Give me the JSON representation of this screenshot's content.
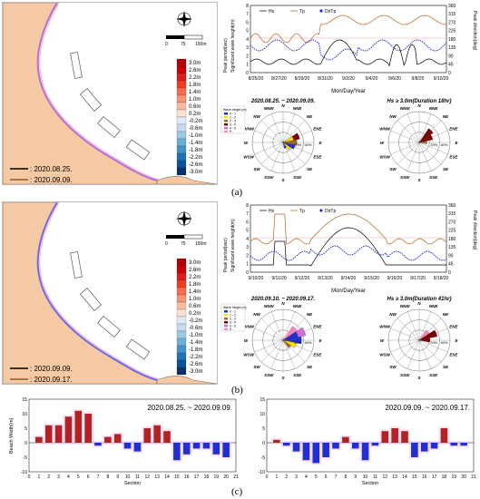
{
  "figure": {
    "panel_labels": [
      "(a)",
      "(b)",
      "(c)"
    ]
  },
  "panel_a": {
    "map": {
      "legend_lines": [
        ": 2020.08.25.",
        ": 2020.09.09."
      ],
      "scale_labels": [
        "0",
        "75",
        "150m"
      ],
      "colorbar_labels": [
        "3.0m",
        "2.6m",
        "2.2m",
        "1.8m",
        "1.4m",
        "1.0m",
        "0.6m",
        "0.2m",
        "-0.2m",
        "-0.6m",
        "-1.0m",
        "-1.4m",
        "-1.8m",
        "-2.2m",
        "-2.6m",
        "-3.0m"
      ],
      "colorbar_colors": [
        "#b30000",
        "#cc0000",
        "#e31a1c",
        "#f03b20",
        "#fb6a4a",
        "#fc9272",
        "#fcbba1",
        "#fee0d2",
        "#deebf7",
        "#c6dbef",
        "#9ecae1",
        "#6baed6",
        "#4292c6",
        "#2171b5",
        "#08519c",
        "#08306b"
      ]
    },
    "timeseries": {
      "legend": [
        "Hs",
        "Tp",
        "DirTp"
      ],
      "ylabel_left": "Significant wave height(m)",
      "ylabel_left2": "Peak period(sec)",
      "ylabel_right": "Peak direction(deg)",
      "xlabel": "Mon/Day/Year",
      "x_ticks": [
        "8/25/20",
        "8/27/20",
        "8/29/20",
        "8/31/20",
        "9/2/20",
        "9/4/20",
        "9/6/20",
        "9/8/20",
        "9/10/20"
      ],
      "left_ticks": [
        "0",
        "1",
        "2",
        "3",
        "4",
        "5",
        "6",
        "7",
        "8"
      ],
      "right_ticks": [
        "0",
        "45",
        "90",
        "135",
        "180",
        "225",
        "270",
        "315",
        "360"
      ]
    },
    "roses": {
      "titles": [
        "2020.08.25. ~ 2020.09.09.",
        "Hs ≥ 3.0m(Duration 18hr)"
      ],
      "directions": [
        "N",
        "NNE",
        "NE",
        "ENE",
        "E",
        "ESE",
        "SE",
        "SSE",
        "S",
        "SSW",
        "SW",
        "WSW",
        "W",
        "WNW",
        "NW",
        "NNW"
      ],
      "ring_labels": [
        "20%",
        "40%"
      ],
      "legend_title": "Wave height (m)",
      "legend_items": [
        "0 - 1",
        "1 - 2",
        "2 - 3",
        "3 - 4",
        "4 - 5",
        "5 -"
      ]
    }
  },
  "panel_b": {
    "map": {
      "legend_lines": [
        ": 2020.09.09.",
        ": 2020.09.17."
      ],
      "scale_labels": [
        "0",
        "75",
        "150m"
      ]
    },
    "timeseries": {
      "legend": [
        "Hs",
        "Tp",
        "DirTp"
      ],
      "ylabel_left": "Significant wave height(m)",
      "ylabel_left2": "Peak period(sec)",
      "ylabel_right": "Peak direction(deg)",
      "xlabel": "Mon/Day/Year",
      "x_ticks": [
        "9/10/20",
        "9/11/20",
        "9/12/20",
        "9/13/20",
        "9/14/20",
        "9/15/20",
        "9/16/20",
        "9/17/20",
        "9/18/20"
      ],
      "left_ticks": [
        "0",
        "1",
        "2",
        "3",
        "4",
        "5",
        "6",
        "7",
        "8"
      ],
      "right_ticks": [
        "0",
        "45",
        "90",
        "135",
        "180",
        "225",
        "270",
        "315",
        "360"
      ]
    },
    "roses": {
      "titles": [
        "2020.09.10. ~ 2020.09.17.",
        "Hs ≥ 3.0m(Duration 41hr)"
      ]
    }
  },
  "panel_c": {
    "chart_data": [
      {
        "type": "bar",
        "title": "2020.08.25. ~ 2020.09.09.",
        "xlabel": "Section",
        "ylabel": "Beach Width(m)",
        "x": [
          1,
          2,
          3,
          4,
          5,
          6,
          7,
          8,
          9,
          10,
          11,
          12,
          13,
          14,
          15,
          16,
          17,
          18,
          19,
          20
        ],
        "values": [
          2,
          6,
          6,
          9,
          11,
          10,
          -1,
          2,
          3,
          -2,
          -3,
          5,
          6,
          4,
          -6,
          -4,
          -2,
          -2,
          -4,
          -5
        ],
        "ylim": [
          -10,
          15
        ],
        "y_ticks": [
          "-10",
          "-5",
          "0",
          "5",
          "10",
          "15"
        ],
        "x_ticks": [
          "0",
          "1",
          "2",
          "3",
          "4",
          "5",
          "6",
          "7",
          "8",
          "9",
          "10",
          "11",
          "12",
          "13",
          "14",
          "15",
          "16",
          "17",
          "18",
          "19",
          "20",
          "21"
        ],
        "positive_color": "#b22222",
        "negative_color": "#1f2fd4"
      },
      {
        "type": "bar",
        "title": "2020.09.09. ~ 2020.09.17.",
        "xlabel": "Section",
        "ylabel": "",
        "x": [
          1,
          2,
          3,
          4,
          5,
          6,
          7,
          8,
          9,
          10,
          11,
          12,
          13,
          14,
          15,
          16,
          17,
          18,
          19,
          20
        ],
        "values": [
          1,
          -1,
          -3,
          -6,
          -7,
          -5,
          -2,
          2,
          -2,
          -6,
          -1,
          4,
          5,
          4,
          -5,
          -3,
          -2,
          5,
          -1,
          -1
        ],
        "ylim": [
          -10,
          15
        ],
        "y_ticks": [
          "-10",
          "-5",
          "0",
          "5",
          "10",
          "15"
        ],
        "x_ticks": [
          "0",
          "1",
          "2",
          "3",
          "4",
          "5",
          "6",
          "7",
          "8",
          "9",
          "10",
          "11",
          "12",
          "13",
          "14",
          "15",
          "16",
          "17",
          "18",
          "19",
          "20",
          "21"
        ],
        "positive_color": "#b22222",
        "negative_color": "#1f2fd4"
      }
    ]
  }
}
